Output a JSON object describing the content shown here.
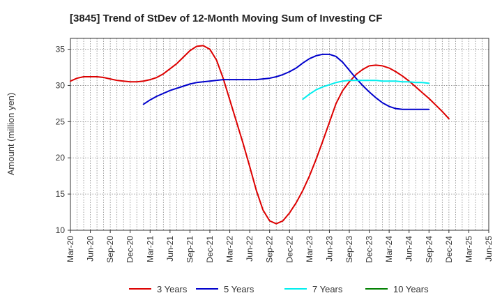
{
  "chart_data": {
    "type": "line",
    "title": "[3845]  Trend of StDev of 12-Month Moving Sum of Investing CF",
    "xlabel": "",
    "ylabel": "Amount (million yen)",
    "ylim": [
      10,
      36.5
    ],
    "yticks": [
      10,
      15,
      20,
      25,
      30,
      35
    ],
    "x_tick_labels": [
      "Mar-20",
      "Jun-20",
      "Sep-20",
      "Dec-20",
      "Mar-21",
      "Jun-21",
      "Sep-21",
      "Dec-21",
      "Mar-22",
      "Jun-22",
      "Sep-22",
      "Dec-22",
      "Mar-23",
      "Jun-23",
      "Sep-23",
      "Dec-23",
      "Mar-24",
      "Jun-24",
      "Sep-24",
      "Dec-24",
      "Mar-25",
      "Jun-25"
    ],
    "grid": true,
    "legend_position": "bottom",
    "series": [
      {
        "name": "3 Years",
        "color": "#dd0000",
        "points": [
          [
            "Mar-20",
            30.6
          ],
          [
            "Apr-20",
            31.0
          ],
          [
            "May-20",
            31.2
          ],
          [
            "Jun-20",
            31.2
          ],
          [
            "Jul-20",
            31.2
          ],
          [
            "Aug-20",
            31.1
          ],
          [
            "Sep-20",
            30.9
          ],
          [
            "Oct-20",
            30.7
          ],
          [
            "Nov-20",
            30.6
          ],
          [
            "Dec-20",
            30.5
          ],
          [
            "Jan-21",
            30.5
          ],
          [
            "Feb-21",
            30.6
          ],
          [
            "Mar-21",
            30.8
          ],
          [
            "Apr-21",
            31.1
          ],
          [
            "May-21",
            31.6
          ],
          [
            "Jun-21",
            32.3
          ],
          [
            "Jul-21",
            33.0
          ],
          [
            "Aug-21",
            33.9
          ],
          [
            "Sep-21",
            34.8
          ],
          [
            "Oct-21",
            35.4
          ],
          [
            "Nov-21",
            35.5
          ],
          [
            "Dec-21",
            35.0
          ],
          [
            "Jan-22",
            33.5
          ],
          [
            "Feb-22",
            31.0
          ],
          [
            "Mar-22",
            28.0
          ],
          [
            "Apr-22",
            25.0
          ],
          [
            "May-22",
            22.0
          ],
          [
            "Jun-22",
            18.8
          ],
          [
            "Jul-22",
            15.5
          ],
          [
            "Aug-22",
            12.8
          ],
          [
            "Sep-22",
            11.3
          ],
          [
            "Oct-22",
            10.9
          ],
          [
            "Nov-22",
            11.3
          ],
          [
            "Dec-22",
            12.4
          ],
          [
            "Jan-23",
            13.8
          ],
          [
            "Feb-23",
            15.5
          ],
          [
            "Mar-23",
            17.5
          ],
          [
            "Apr-23",
            19.8
          ],
          [
            "May-23",
            22.3
          ],
          [
            "Jun-23",
            24.9
          ],
          [
            "Jul-23",
            27.5
          ],
          [
            "Aug-23",
            29.3
          ],
          [
            "Sep-23",
            30.5
          ],
          [
            "Oct-23",
            31.5
          ],
          [
            "Nov-23",
            32.2
          ],
          [
            "Dec-23",
            32.7
          ],
          [
            "Jan-24",
            32.8
          ],
          [
            "Feb-24",
            32.7
          ],
          [
            "Mar-24",
            32.4
          ],
          [
            "Apr-24",
            31.9
          ],
          [
            "May-24",
            31.3
          ],
          [
            "Jun-24",
            30.6
          ],
          [
            "Jul-24",
            29.8
          ],
          [
            "Aug-24",
            29.0
          ],
          [
            "Sep-24",
            28.2
          ],
          [
            "Oct-24",
            27.3
          ],
          [
            "Nov-24",
            26.4
          ],
          [
            "Dec-24",
            25.4
          ]
        ]
      },
      {
        "name": "5 Years",
        "color": "#0000cc",
        "points": [
          [
            "Feb-21",
            27.4
          ],
          [
            "Mar-21",
            28.0
          ],
          [
            "Apr-21",
            28.5
          ],
          [
            "May-21",
            28.9
          ],
          [
            "Jun-21",
            29.3
          ],
          [
            "Jul-21",
            29.6
          ],
          [
            "Aug-21",
            29.9
          ],
          [
            "Sep-21",
            30.2
          ],
          [
            "Oct-21",
            30.4
          ],
          [
            "Nov-21",
            30.5
          ],
          [
            "Dec-21",
            30.6
          ],
          [
            "Jan-22",
            30.7
          ],
          [
            "Feb-22",
            30.8
          ],
          [
            "Mar-22",
            30.8
          ],
          [
            "Apr-22",
            30.8
          ],
          [
            "May-22",
            30.8
          ],
          [
            "Jun-22",
            30.8
          ],
          [
            "Jul-22",
            30.8
          ],
          [
            "Aug-22",
            30.9
          ],
          [
            "Sep-22",
            31.0
          ],
          [
            "Oct-22",
            31.2
          ],
          [
            "Nov-22",
            31.5
          ],
          [
            "Dec-22",
            31.9
          ],
          [
            "Jan-23",
            32.4
          ],
          [
            "Feb-23",
            33.1
          ],
          [
            "Mar-23",
            33.7
          ],
          [
            "Apr-23",
            34.1
          ],
          [
            "May-23",
            34.3
          ],
          [
            "Jun-23",
            34.3
          ],
          [
            "Jul-23",
            34.0
          ],
          [
            "Aug-23",
            33.2
          ],
          [
            "Sep-23",
            32.1
          ],
          [
            "Oct-23",
            31.0
          ],
          [
            "Nov-23",
            30.0
          ],
          [
            "Dec-23",
            29.1
          ],
          [
            "Jan-24",
            28.3
          ],
          [
            "Feb-24",
            27.6
          ],
          [
            "Mar-24",
            27.1
          ],
          [
            "Apr-24",
            26.8
          ],
          [
            "May-24",
            26.7
          ],
          [
            "Jun-24",
            26.7
          ],
          [
            "Jul-24",
            26.7
          ],
          [
            "Aug-24",
            26.7
          ],
          [
            "Sep-24",
            26.7
          ]
        ]
      },
      {
        "name": "7 Years",
        "color": "#00eeee",
        "points": [
          [
            "Feb-23",
            28.1
          ],
          [
            "Mar-23",
            28.8
          ],
          [
            "Apr-23",
            29.4
          ],
          [
            "May-23",
            29.8
          ],
          [
            "Jun-23",
            30.1
          ],
          [
            "Jul-23",
            30.4
          ],
          [
            "Aug-23",
            30.6
          ],
          [
            "Sep-23",
            30.7
          ],
          [
            "Oct-23",
            30.7
          ],
          [
            "Nov-23",
            30.7
          ],
          [
            "Dec-23",
            30.7
          ],
          [
            "Jan-24",
            30.7
          ],
          [
            "Feb-24",
            30.6
          ],
          [
            "Mar-24",
            30.6
          ],
          [
            "Apr-24",
            30.6
          ],
          [
            "May-24",
            30.5
          ],
          [
            "Jun-24",
            30.5
          ],
          [
            "Jul-24",
            30.4
          ],
          [
            "Aug-24",
            30.4
          ],
          [
            "Sep-24",
            30.3
          ]
        ]
      },
      {
        "name": "10 Years",
        "color": "#008000",
        "points": []
      }
    ]
  }
}
